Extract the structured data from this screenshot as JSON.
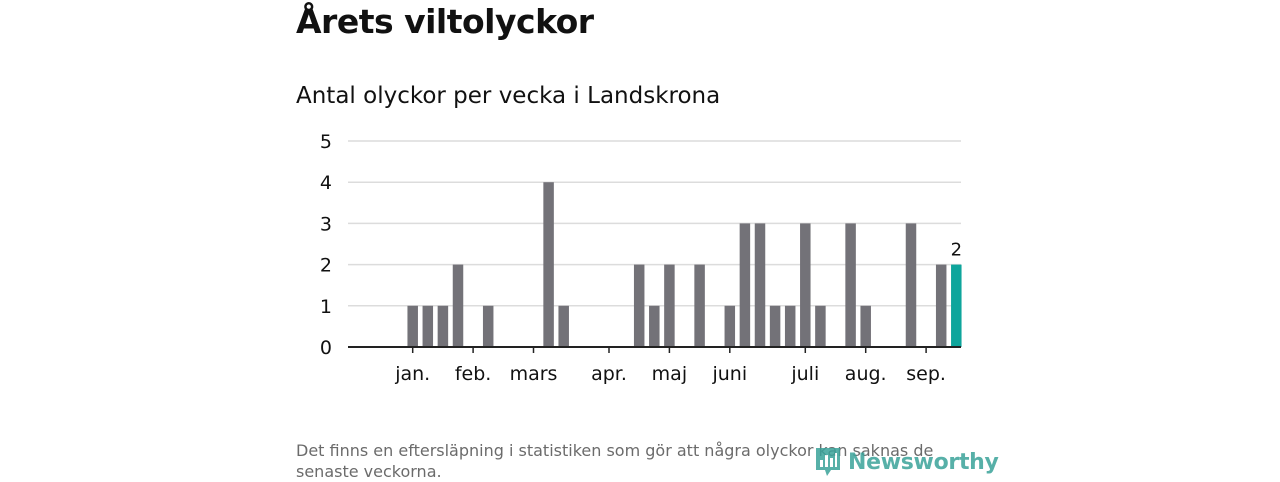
{
  "header": {
    "title": "Årets viltolyckor",
    "subtitle": "Antal olyckor per vecka i Landskrona"
  },
  "footnote": "Det finns en eftersläpning i statistiken som gör att några olyckor kan saknas de senaste veckorna.",
  "logo": {
    "text": "Newsworthy"
  },
  "colors": {
    "bar": "#737278",
    "highlight": "#0ea59c",
    "grid": "#dcdcdc",
    "axis": "#222222"
  },
  "chart_data": {
    "type": "bar",
    "title": "Antal olyckor per vecka i Landskrona",
    "xlabel": "",
    "ylabel": "",
    "ylim": [
      0,
      5
    ],
    "yticks": [
      "0",
      "1",
      "2",
      "3",
      "4",
      "5"
    ],
    "grid": true,
    "x_slot_count": 40,
    "months": [
      {
        "label": "jan.",
        "position": 2
      },
      {
        "label": "feb.",
        "position": 6
      },
      {
        "label": "mars",
        "position": 10
      },
      {
        "label": "apr.",
        "position": 15
      },
      {
        "label": "maj",
        "position": 19
      },
      {
        "label": "juni",
        "position": 23
      },
      {
        "label": "juli",
        "position": 28
      },
      {
        "label": "aug.",
        "position": 32
      },
      {
        "label": "sep.",
        "position": 36
      }
    ],
    "values": [
      0,
      0,
      1,
      1,
      1,
      2,
      0,
      1,
      0,
      0,
      0,
      4,
      1,
      0,
      0,
      0,
      0,
      2,
      1,
      2,
      0,
      2,
      0,
      1,
      3,
      3,
      1,
      1,
      3,
      1,
      0,
      3,
      1,
      0,
      0,
      3,
      0,
      2,
      2
    ],
    "highlight_index": 38,
    "highlight_label": "2"
  }
}
